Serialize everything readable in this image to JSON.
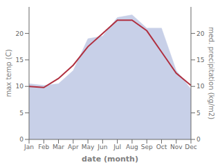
{
  "chart_data": {
    "type": "line",
    "categories": [
      "Jan",
      "Feb",
      "Mar",
      "Apr",
      "May",
      "Jun",
      "Jul",
      "Aug",
      "Sep",
      "Oct",
      "Nov",
      "Dec"
    ],
    "x_label": "date (month)",
    "y_label": "max temp (C)",
    "y2_label": "med. precipitation (kg/m2)",
    "series": [
      {
        "type": "area",
        "axis": "y2",
        "color": "#c8d0e8",
        "values": [
          10.5,
          10.2,
          10.5,
          13.0,
          19.0,
          19.5,
          23.0,
          23.5,
          21.0,
          21.0,
          13.0,
          9.5
        ]
      },
      {
        "type": "line",
        "color": "#b03040",
        "values": [
          10.0,
          9.8,
          11.5,
          14.0,
          17.5,
          20.0,
          22.5,
          22.5,
          20.5,
          16.5,
          12.5,
          10.2
        ]
      }
    ],
    "ylim": [
      0,
      25
    ],
    "yticks": [
      0,
      5,
      10,
      15,
      20
    ],
    "y2lim": [
      0,
      25
    ],
    "y2ticks": [
      0,
      5,
      10,
      15,
      20
    ],
    "grid": false
  }
}
